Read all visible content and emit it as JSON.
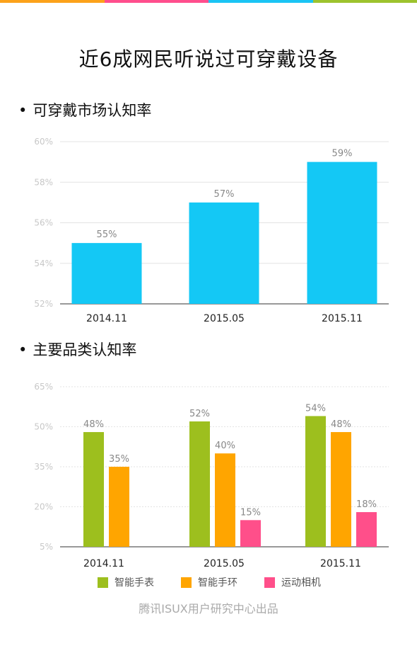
{
  "page": {
    "title": "近6成网民听说过可穿戴设备",
    "credit": "腾讯ISUX用户研究中心出品"
  },
  "colors": {
    "topbar": [
      "#fca21a",
      "#ff4e8d",
      "#1ac4f4",
      "#9dc32e"
    ],
    "chart1_bar": "#14c8f5",
    "watch": "#9dbf1e",
    "band": "#ffa500",
    "camera": "#ff4f8a"
  },
  "sections": {
    "chart1_title": "可穿戴市场认知率",
    "chart2_title": "主要品类认知率",
    "bullet": "•"
  },
  "chart_data": [
    {
      "type": "bar",
      "title": "可穿戴市场认知率",
      "categories": [
        "2014.11",
        "2015.05",
        "2015.11"
      ],
      "values": [
        55,
        57,
        59
      ],
      "value_labels": [
        "55%",
        "57%",
        "59%"
      ],
      "ylim": [
        52,
        60
      ],
      "yticks": [
        52,
        54,
        56,
        58,
        60
      ],
      "ytick_labels": [
        "52%",
        "54%",
        "56%",
        "58%",
        "60%"
      ],
      "grid": true
    },
    {
      "type": "bar",
      "title": "主要品类认知率",
      "categories": [
        "2014.11",
        "2015.05",
        "2015.11"
      ],
      "series": [
        {
          "name": "智能手表",
          "values": [
            48,
            52,
            54
          ],
          "labels": [
            "48%",
            "52%",
            "54%"
          ]
        },
        {
          "name": "智能手环",
          "values": [
            35,
            40,
            48
          ],
          "labels": [
            "35%",
            "40%",
            "48%"
          ]
        },
        {
          "name": "运动相机",
          "values": [
            null,
            15,
            18
          ],
          "labels": [
            "",
            "15%",
            "18%"
          ]
        }
      ],
      "ylim": [
        5,
        65
      ],
      "yticks": [
        5,
        20,
        35,
        50,
        65
      ],
      "ytick_labels": [
        "5%",
        "20%",
        "35%",
        "50%",
        "65%"
      ],
      "grid": true,
      "legend_position": "bottom"
    }
  ]
}
